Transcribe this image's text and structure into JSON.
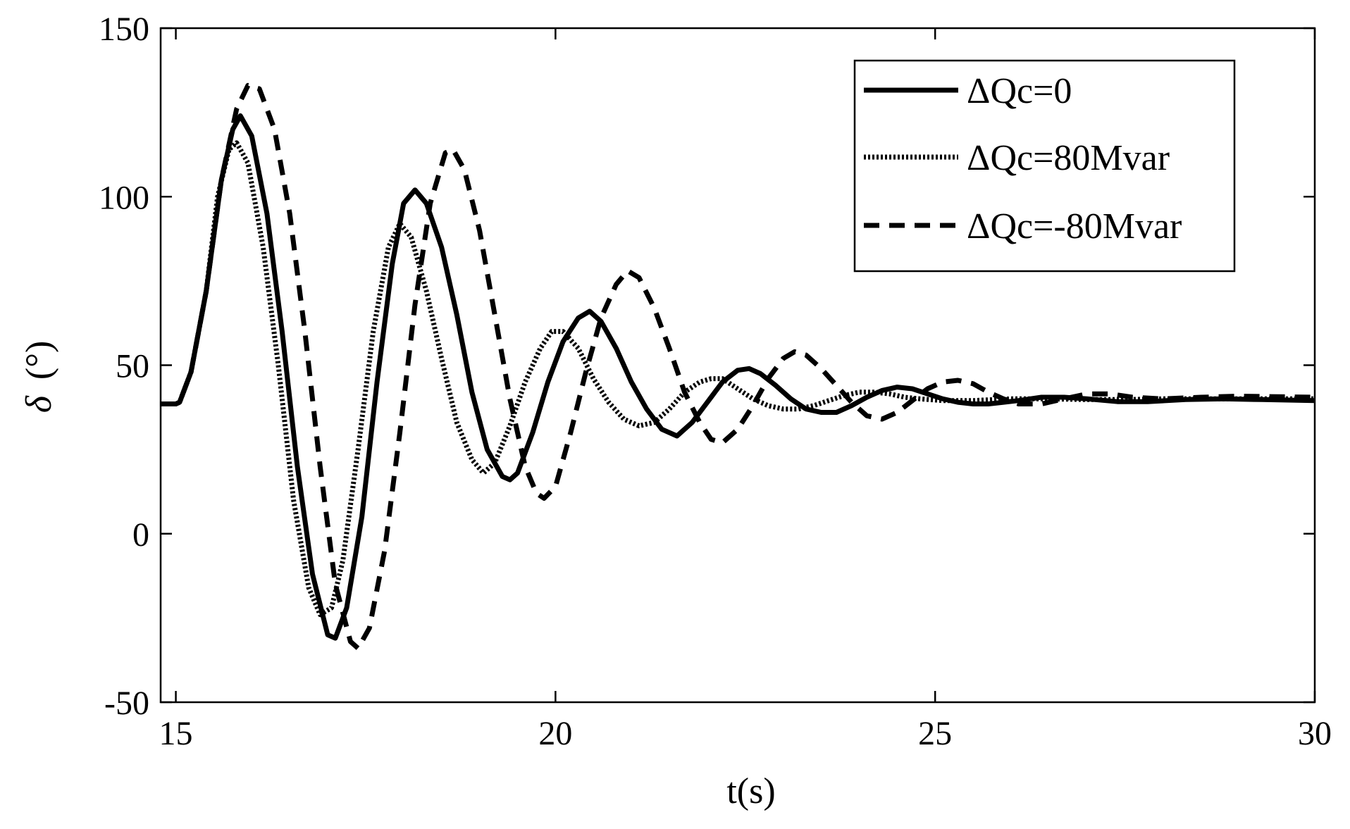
{
  "chart_data": {
    "type": "line",
    "xlabel": "t(s)",
    "ylabel_symbol": "δ",
    "ylabel_unit": "(°)",
    "xlim": [
      14.8,
      30
    ],
    "ylim": [
      -50,
      150
    ],
    "xticks": [
      15,
      20,
      25,
      30
    ],
    "xtick_labels": [
      "15",
      "20",
      "25",
      "30"
    ],
    "yticks": [
      -50,
      0,
      50,
      100,
      150
    ],
    "ytick_labels": [
      "-50",
      "0",
      "50",
      "100",
      "150"
    ],
    "grid": false,
    "legend_position": "top-right",
    "series": [
      {
        "name": "ΔQc=0",
        "style": "solid",
        "points": [
          [
            14.8,
            38.5
          ],
          [
            15.0,
            38.5
          ],
          [
            15.05,
            39
          ],
          [
            15.2,
            48
          ],
          [
            15.4,
            72
          ],
          [
            15.6,
            105
          ],
          [
            15.75,
            120
          ],
          [
            15.85,
            124
          ],
          [
            16.0,
            118
          ],
          [
            16.2,
            95
          ],
          [
            16.4,
            60
          ],
          [
            16.6,
            20
          ],
          [
            16.8,
            -12
          ],
          [
            17.0,
            -30
          ],
          [
            17.1,
            -31
          ],
          [
            17.25,
            -22
          ],
          [
            17.45,
            5
          ],
          [
            17.65,
            45
          ],
          [
            17.85,
            80
          ],
          [
            18.0,
            98
          ],
          [
            18.15,
            102
          ],
          [
            18.3,
            98
          ],
          [
            18.5,
            85
          ],
          [
            18.7,
            65
          ],
          [
            18.9,
            42
          ],
          [
            19.1,
            25
          ],
          [
            19.3,
            17
          ],
          [
            19.4,
            16
          ],
          [
            19.5,
            18
          ],
          [
            19.7,
            30
          ],
          [
            19.9,
            45
          ],
          [
            20.1,
            57
          ],
          [
            20.3,
            64
          ],
          [
            20.45,
            66
          ],
          [
            20.6,
            63
          ],
          [
            20.8,
            55
          ],
          [
            21.0,
            45
          ],
          [
            21.2,
            37
          ],
          [
            21.4,
            31
          ],
          [
            21.6,
            29
          ],
          [
            21.8,
            33
          ],
          [
            22.0,
            39
          ],
          [
            22.2,
            45
          ],
          [
            22.4,
            48.5
          ],
          [
            22.55,
            49
          ],
          [
            22.7,
            47.5
          ],
          [
            22.9,
            44
          ],
          [
            23.1,
            40
          ],
          [
            23.3,
            37
          ],
          [
            23.5,
            36
          ],
          [
            23.7,
            36
          ],
          [
            23.9,
            38
          ],
          [
            24.1,
            40.5
          ],
          [
            24.3,
            42.5
          ],
          [
            24.5,
            43.5
          ],
          [
            24.7,
            43
          ],
          [
            24.9,
            41.5
          ],
          [
            25.1,
            40
          ],
          [
            25.3,
            39
          ],
          [
            25.5,
            38.5
          ],
          [
            25.7,
            38.5
          ],
          [
            25.9,
            39
          ],
          [
            26.1,
            39.5
          ],
          [
            26.4,
            40.5
          ],
          [
            26.7,
            40.5
          ],
          [
            27.0,
            40
          ],
          [
            27.4,
            39.2
          ],
          [
            27.8,
            39.2
          ],
          [
            28.3,
            39.8
          ],
          [
            28.8,
            40
          ],
          [
            29.3,
            39.8
          ],
          [
            30.0,
            39.5
          ]
        ]
      },
      {
        "name": "ΔQc=80Mvar",
        "style": "dotted",
        "points": [
          [
            14.8,
            38.5
          ],
          [
            15.0,
            38.5
          ],
          [
            15.05,
            39
          ],
          [
            15.2,
            48
          ],
          [
            15.4,
            72
          ],
          [
            15.55,
            100
          ],
          [
            15.7,
            114
          ],
          [
            15.8,
            116
          ],
          [
            15.95,
            110
          ],
          [
            16.15,
            85
          ],
          [
            16.35,
            50
          ],
          [
            16.55,
            10
          ],
          [
            16.75,
            -16
          ],
          [
            16.9,
            -24
          ],
          [
            17.05,
            -22
          ],
          [
            17.2,
            -8
          ],
          [
            17.4,
            25
          ],
          [
            17.6,
            60
          ],
          [
            17.8,
            85
          ],
          [
            17.95,
            92
          ],
          [
            18.1,
            88
          ],
          [
            18.3,
            72
          ],
          [
            18.5,
            52
          ],
          [
            18.7,
            33
          ],
          [
            18.9,
            22
          ],
          [
            19.05,
            18
          ],
          [
            19.2,
            21
          ],
          [
            19.4,
            32
          ],
          [
            19.6,
            45
          ],
          [
            19.8,
            55
          ],
          [
            19.95,
            60
          ],
          [
            20.1,
            60
          ],
          [
            20.3,
            55
          ],
          [
            20.5,
            46
          ],
          [
            20.7,
            39
          ],
          [
            20.9,
            34
          ],
          [
            21.1,
            32
          ],
          [
            21.3,
            33
          ],
          [
            21.5,
            37
          ],
          [
            21.7,
            42
          ],
          [
            21.9,
            45
          ],
          [
            22.05,
            46
          ],
          [
            22.2,
            46
          ],
          [
            22.4,
            43
          ],
          [
            22.6,
            40
          ],
          [
            22.8,
            38
          ],
          [
            23.0,
            37
          ],
          [
            23.2,
            37
          ],
          [
            23.4,
            38
          ],
          [
            23.6,
            39.5
          ],
          [
            23.8,
            41
          ],
          [
            24.0,
            42
          ],
          [
            24.2,
            42
          ],
          [
            24.4,
            41.5
          ],
          [
            24.6,
            40.5
          ],
          [
            24.8,
            40
          ],
          [
            25.1,
            39.5
          ],
          [
            25.5,
            39.5
          ],
          [
            26.0,
            40
          ],
          [
            26.5,
            40
          ],
          [
            27.0,
            39.8
          ],
          [
            27.5,
            39.8
          ],
          [
            28.0,
            40
          ],
          [
            28.5,
            40
          ],
          [
            29.0,
            40
          ],
          [
            30.0,
            40
          ]
        ]
      },
      {
        "name": "ΔQc=-80Mvar",
        "style": "dashed",
        "points": [
          [
            14.8,
            38.5
          ],
          [
            15.0,
            38.5
          ],
          [
            15.05,
            39
          ],
          [
            15.2,
            48
          ],
          [
            15.4,
            72
          ],
          [
            15.6,
            105
          ],
          [
            15.8,
            126
          ],
          [
            15.95,
            133
          ],
          [
            16.1,
            132
          ],
          [
            16.3,
            120
          ],
          [
            16.5,
            95
          ],
          [
            16.7,
            60
          ],
          [
            16.9,
            20
          ],
          [
            17.1,
            -15
          ],
          [
            17.3,
            -32
          ],
          [
            17.4,
            -34
          ],
          [
            17.55,
            -28
          ],
          [
            17.75,
            -5
          ],
          [
            17.95,
            30
          ],
          [
            18.15,
            68
          ],
          [
            18.35,
            98
          ],
          [
            18.55,
            113
          ],
          [
            18.65,
            114
          ],
          [
            18.8,
            108
          ],
          [
            19.0,
            90
          ],
          [
            19.2,
            65
          ],
          [
            19.4,
            40
          ],
          [
            19.6,
            20
          ],
          [
            19.75,
            12
          ],
          [
            19.85,
            10.5
          ],
          [
            20.0,
            14
          ],
          [
            20.2,
            30
          ],
          [
            20.4,
            48
          ],
          [
            20.6,
            64
          ],
          [
            20.8,
            74
          ],
          [
            20.95,
            78
          ],
          [
            21.1,
            76
          ],
          [
            21.3,
            67
          ],
          [
            21.5,
            55
          ],
          [
            21.7,
            42
          ],
          [
            21.9,
            33
          ],
          [
            22.05,
            28
          ],
          [
            22.2,
            27
          ],
          [
            22.4,
            31
          ],
          [
            22.6,
            38
          ],
          [
            22.8,
            46
          ],
          [
            23.0,
            52
          ],
          [
            23.15,
            54
          ],
          [
            23.3,
            53
          ],
          [
            23.5,
            49
          ],
          [
            23.7,
            44
          ],
          [
            23.9,
            39
          ],
          [
            24.1,
            35
          ],
          [
            24.3,
            34
          ],
          [
            24.5,
            36
          ],
          [
            24.7,
            39.5
          ],
          [
            24.9,
            43
          ],
          [
            25.1,
            45
          ],
          [
            25.3,
            45.5
          ],
          [
            25.5,
            44.5
          ],
          [
            25.7,
            42
          ],
          [
            25.9,
            40
          ],
          [
            26.1,
            38.5
          ],
          [
            26.4,
            38.5
          ],
          [
            26.7,
            40
          ],
          [
            27.0,
            41.5
          ],
          [
            27.3,
            41.5
          ],
          [
            27.6,
            40.5
          ],
          [
            28.0,
            40
          ],
          [
            28.5,
            40.5
          ],
          [
            29.0,
            40.8
          ],
          [
            30.0,
            40.5
          ]
        ]
      }
    ]
  }
}
